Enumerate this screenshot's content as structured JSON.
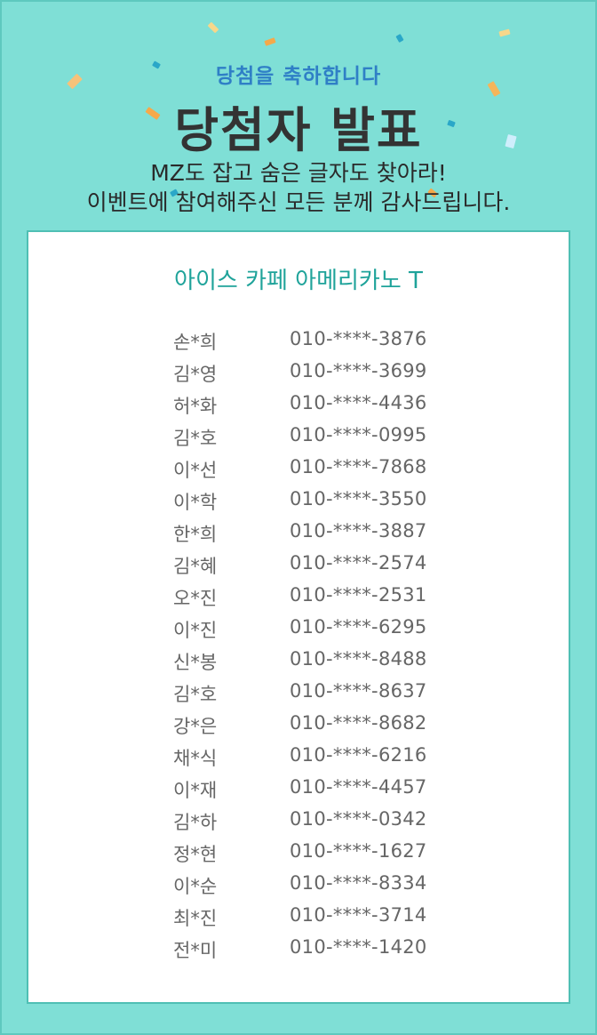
{
  "header": {
    "subtitle": "당첨을 축하합니다",
    "title": "당첨자 발표",
    "desc_line1": "MZ도 잡고 숨은 글자도 찾아라!",
    "desc_line2": "이벤트에 참여해주신 모든 분께 감사드립니다."
  },
  "prize": "아이스 카페 아메리카노 T",
  "winners": [
    {
      "name": "손*희",
      "phone": "010-****-3876"
    },
    {
      "name": "김*영",
      "phone": "010-****-3699"
    },
    {
      "name": "허*화",
      "phone": "010-****-4436"
    },
    {
      "name": "김*호",
      "phone": "010-****-0995"
    },
    {
      "name": "이*선",
      "phone": "010-****-7868"
    },
    {
      "name": "이*학",
      "phone": "010-****-3550"
    },
    {
      "name": "한*희",
      "phone": "010-****-3887"
    },
    {
      "name": "김*혜",
      "phone": "010-****-2574"
    },
    {
      "name": "오*진",
      "phone": "010-****-2531"
    },
    {
      "name": "이*진",
      "phone": "010-****-6295"
    },
    {
      "name": "신*봉",
      "phone": "010-****-8488"
    },
    {
      "name": "김*호",
      "phone": "010-****-8637"
    },
    {
      "name": "강*은",
      "phone": "010-****-8682"
    },
    {
      "name": "채*식",
      "phone": "010-****-6216"
    },
    {
      "name": "이*재",
      "phone": "010-****-4457"
    },
    {
      "name": "김*하",
      "phone": "010-****-0342"
    },
    {
      "name": "정*현",
      "phone": "010-****-1627"
    },
    {
      "name": "이*순",
      "phone": "010-****-8334"
    },
    {
      "name": "최*진",
      "phone": "010-****-3714"
    },
    {
      "name": "전*미",
      "phone": "010-****-1420"
    }
  ],
  "colors": {
    "background": "#7fdfd6",
    "subtitle": "#2f7fc6",
    "title": "#333333",
    "prize": "#1fa39a",
    "card_border": "#4fbfb4"
  }
}
